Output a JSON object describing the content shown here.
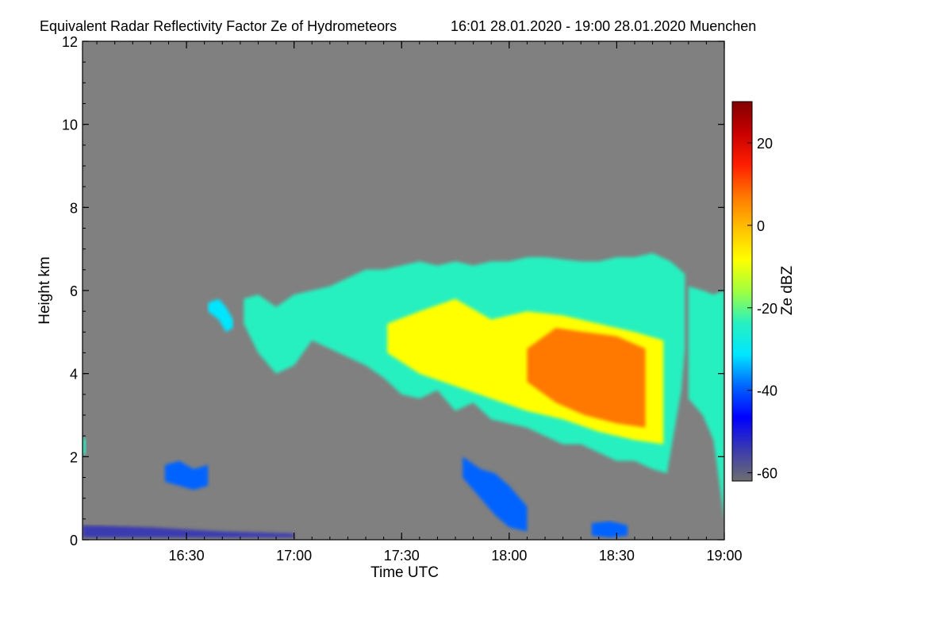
{
  "chart_data": {
    "type": "heatmap",
    "title": "Equivalent Radar Reflectivity Factor Ze of Hydrometeors",
    "subtitle": "16:01 28.01.2020 - 19:00 28.01.2020 Muenchen",
    "xlabel": "Time UTC",
    "ylabel": "Height km",
    "x_range_minutes_utc": [
      961,
      1140
    ],
    "x_ticks": [
      {
        "label": "16:30",
        "minute": 990
      },
      {
        "label": "17:00",
        "minute": 1020
      },
      {
        "label": "17:30",
        "minute": 1050
      },
      {
        "label": "18:00",
        "minute": 1080
      },
      {
        "label": "18:30",
        "minute": 1110
      },
      {
        "label": "19:00",
        "minute": 1140
      }
    ],
    "ylim": [
      0,
      12
    ],
    "y_ticks": [
      "0",
      "2",
      "4",
      "6",
      "8",
      "10",
      "12"
    ],
    "background_color": "#808080",
    "colorbar": {
      "label": "Ze dBZ",
      "range": [
        -62,
        30
      ],
      "ticks": [
        "-60",
        "-40",
        "-20",
        "0",
        "20"
      ],
      "colors": [
        "#6e6e6e",
        "#3a3ab0",
        "#0000ff",
        "#0064ff",
        "#00e6ff",
        "#28f0c0",
        "#a0ff40",
        "#ffff00",
        "#ffc000",
        "#ff7800",
        "#ff1e00",
        "#c80000",
        "#800000"
      ]
    },
    "echo_regions": [
      {
        "name": "main-cloud-top",
        "level_dBZ": -25,
        "top_km": [
          [
            1006,
            5.8
          ],
          [
            1010,
            5.9
          ],
          [
            1015,
            5.6
          ],
          [
            1020,
            5.9
          ],
          [
            1025,
            6.0
          ],
          [
            1030,
            6.1
          ],
          [
            1035,
            6.3
          ],
          [
            1040,
            6.5
          ],
          [
            1045,
            6.5
          ],
          [
            1050,
            6.6
          ],
          [
            1055,
            6.7
          ],
          [
            1060,
            6.6
          ],
          [
            1065,
            6.7
          ],
          [
            1070,
            6.6
          ],
          [
            1075,
            6.7
          ],
          [
            1080,
            6.7
          ],
          [
            1085,
            6.8
          ],
          [
            1090,
            6.8
          ],
          [
            1095,
            6.75
          ],
          [
            1100,
            6.7
          ],
          [
            1105,
            6.7
          ],
          [
            1110,
            6.8
          ],
          [
            1115,
            6.8
          ],
          [
            1120,
            6.9
          ],
          [
            1125,
            6.7
          ],
          [
            1129,
            6.4
          ]
        ],
        "base_km": [
          [
            1006,
            5.2
          ],
          [
            1010,
            4.5
          ],
          [
            1015,
            4.0
          ],
          [
            1020,
            4.2
          ],
          [
            1025,
            4.8
          ],
          [
            1030,
            4.6
          ],
          [
            1035,
            4.4
          ],
          [
            1040,
            4.2
          ],
          [
            1045,
            3.9
          ],
          [
            1050,
            3.5
          ],
          [
            1055,
            3.4
          ],
          [
            1060,
            3.6
          ],
          [
            1065,
            3.1
          ],
          [
            1070,
            3.3
          ],
          [
            1075,
            2.9
          ],
          [
            1080,
            2.8
          ],
          [
            1085,
            2.7
          ],
          [
            1090,
            2.5
          ],
          [
            1095,
            2.3
          ],
          [
            1100,
            2.3
          ],
          [
            1105,
            2.1
          ],
          [
            1110,
            1.9
          ],
          [
            1115,
            1.9
          ],
          [
            1120,
            1.7
          ],
          [
            1124,
            1.6
          ],
          [
            1126,
            2.6
          ],
          [
            1128,
            3.6
          ],
          [
            1129,
            4.6
          ]
        ]
      },
      {
        "name": "main-cloud-core",
        "level_dBZ": -5,
        "top_km": [
          [
            1046,
            5.2
          ],
          [
            1055,
            5.5
          ],
          [
            1065,
            5.8
          ],
          [
            1075,
            5.3
          ],
          [
            1085,
            5.5
          ],
          [
            1095,
            5.4
          ],
          [
            1105,
            5.2
          ],
          [
            1115,
            5.0
          ],
          [
            1123,
            4.8
          ]
        ],
        "base_km": [
          [
            1046,
            4.5
          ],
          [
            1055,
            4.0
          ],
          [
            1065,
            3.7
          ],
          [
            1075,
            3.4
          ],
          [
            1085,
            3.1
          ],
          [
            1095,
            2.9
          ],
          [
            1105,
            2.6
          ],
          [
            1115,
            2.4
          ],
          [
            1123,
            2.3
          ]
        ]
      },
      {
        "name": "main-cloud-max",
        "level_dBZ": 5,
        "top_km": [
          [
            1085,
            4.6
          ],
          [
            1093,
            5.1
          ],
          [
            1101,
            5.0
          ],
          [
            1110,
            4.9
          ],
          [
            1118,
            4.6
          ]
        ],
        "base_km": [
          [
            1085,
            3.8
          ],
          [
            1093,
            3.3
          ],
          [
            1101,
            3.0
          ],
          [
            1110,
            2.8
          ],
          [
            1118,
            2.7
          ]
        ]
      },
      {
        "name": "upper-left-fragment",
        "level_dBZ": -30,
        "top_km": [
          [
            996,
            5.7
          ],
          [
            999,
            5.8
          ],
          [
            1001,
            5.6
          ],
          [
            1003,
            5.3
          ]
        ],
        "base_km": [
          [
            996,
            5.5
          ],
          [
            999,
            5.3
          ],
          [
            1001,
            5.0
          ],
          [
            1003,
            5.1
          ]
        ]
      },
      {
        "name": "right-edge-cloud",
        "level_dBZ": -20,
        "top_km": [
          [
            1130,
            6.1
          ],
          [
            1134,
            6.0
          ],
          [
            1137,
            5.9
          ],
          [
            1140,
            6.0
          ]
        ],
        "base_km": [
          [
            1130,
            3.4
          ],
          [
            1134,
            3.0
          ],
          [
            1137,
            2.4
          ],
          [
            1140,
            0.5
          ]
        ]
      },
      {
        "name": "low-echo-1630",
        "level_dBZ": -42,
        "top_km": [
          [
            984,
            1.8
          ],
          [
            988,
            1.9
          ],
          [
            992,
            1.7
          ],
          [
            996,
            1.8
          ]
        ],
        "base_km": [
          [
            984,
            1.4
          ],
          [
            988,
            1.3
          ],
          [
            992,
            1.2
          ],
          [
            996,
            1.3
          ]
        ]
      },
      {
        "name": "low-echo-1800",
        "level_dBZ": -40,
        "top_km": [
          [
            1067,
            2.0
          ],
          [
            1072,
            1.7
          ],
          [
            1076,
            1.6
          ],
          [
            1080,
            1.3
          ],
          [
            1085,
            0.8
          ]
        ],
        "base_km": [
          [
            1067,
            1.5
          ],
          [
            1072,
            1.0
          ],
          [
            1076,
            0.6
          ],
          [
            1080,
            0.3
          ],
          [
            1085,
            0.2
          ]
        ]
      },
      {
        "name": "ground-echo-1830",
        "level_dBZ": -42,
        "top_km": [
          [
            1103,
            0.4
          ],
          [
            1108,
            0.45
          ],
          [
            1113,
            0.35
          ]
        ],
        "base_km": [
          [
            1103,
            0.1
          ],
          [
            1108,
            0.05
          ],
          [
            1113,
            0.1
          ]
        ]
      },
      {
        "name": "ground-clutter",
        "level_dBZ": -55,
        "top_km": [
          [
            961,
            0.35
          ],
          [
            980,
            0.3
          ],
          [
            1000,
            0.2
          ],
          [
            1020,
            0.15
          ]
        ],
        "base_km": [
          [
            961,
            0.05
          ],
          [
            980,
            0.05
          ],
          [
            1000,
            0.05
          ],
          [
            1020,
            0.05
          ]
        ]
      },
      {
        "name": "left-edge-echo",
        "level_dBZ": -25,
        "top_km": [
          [
            961,
            2.5
          ],
          [
            962,
            2.4
          ]
        ],
        "base_km": [
          [
            961,
            2.0
          ],
          [
            962,
            2.1
          ]
        ]
      }
    ],
    "grid": false,
    "legend": "colorbar-right"
  }
}
